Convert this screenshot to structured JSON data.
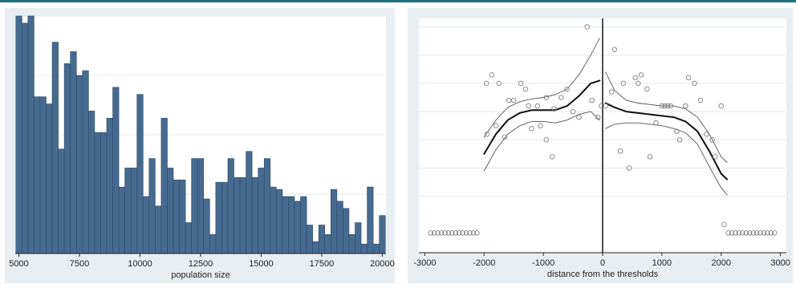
{
  "chart_data": [
    {
      "type": "bar",
      "xlabel": "population size",
      "ylabel": "",
      "xlim": [
        4850,
        20150
      ],
      "ylim": [
        0,
        100
      ],
      "xticks": [
        5000,
        7500,
        10000,
        12500,
        15000,
        17500,
        20000
      ],
      "bin_width": 250,
      "x": [
        5000,
        5250,
        5500,
        5750,
        6000,
        6250,
        6500,
        6750,
        7000,
        7250,
        7500,
        7750,
        8000,
        8250,
        8500,
        8750,
        9000,
        9250,
        9500,
        9750,
        10000,
        10250,
        10500,
        10750,
        11000,
        11250,
        11500,
        11750,
        12000,
        12250,
        12500,
        12750,
        13000,
        13250,
        13500,
        13750,
        14000,
        14250,
        14500,
        14750,
        15000,
        15250,
        15500,
        15750,
        16000,
        16250,
        16500,
        16750,
        17000,
        17250,
        17500,
        17750,
        18000,
        18250,
        18500,
        18750,
        19000,
        19250,
        19500,
        19750,
        20000
      ],
      "values": [
        100,
        97,
        100,
        66,
        66,
        63,
        89,
        44,
        80,
        85,
        75,
        77,
        60,
        51,
        51,
        57,
        70,
        28,
        36,
        36,
        67,
        24,
        40,
        20,
        57,
        36,
        31,
        31,
        13,
        40,
        40,
        23,
        8,
        30,
        30,
        40,
        32,
        32,
        43,
        32,
        36,
        40,
        28,
        27,
        24,
        24,
        22,
        24,
        12,
        5,
        12,
        8,
        27,
        22,
        19,
        8,
        13,
        4,
        28,
        4,
        16
      ]
    },
    {
      "type": "scatter",
      "xlabel": "distance from the thresholds",
      "ylabel": "",
      "xlim": [
        -3100,
        3100
      ],
      "ylim": [
        -1,
        7.3
      ],
      "xticks": [
        -3000,
        -2000,
        -1000,
        0,
        1000,
        2000,
        3000
      ],
      "threshold_line_x": 0,
      "points": [
        [
          -2900,
          -0.3
        ],
        [
          -2840,
          -0.3
        ],
        [
          -2780,
          -0.3
        ],
        [
          -2720,
          -0.3
        ],
        [
          -2660,
          -0.3
        ],
        [
          -2600,
          -0.3
        ],
        [
          -2540,
          -0.3
        ],
        [
          -2480,
          -0.3
        ],
        [
          -2420,
          -0.3
        ],
        [
          -2360,
          -0.3
        ],
        [
          -2300,
          -0.3
        ],
        [
          -2240,
          -0.3
        ],
        [
          -2180,
          -0.3
        ],
        [
          -2120,
          -0.3
        ],
        [
          -1960,
          5.0
        ],
        [
          -1870,
          5.3
        ],
        [
          -1750,
          5.0
        ],
        [
          -1580,
          4.4
        ],
        [
          -1500,
          4.4
        ],
        [
          -1380,
          5.0
        ],
        [
          -1300,
          4.8
        ],
        [
          -1250,
          4.2
        ],
        [
          -1100,
          4.2
        ],
        [
          -1050,
          3.5
        ],
        [
          -950,
          4.5
        ],
        [
          -850,
          2.4
        ],
        [
          -820,
          4.1
        ],
        [
          -700,
          4.5
        ],
        [
          -600,
          4.8
        ],
        [
          -500,
          4.0
        ],
        [
          -400,
          3.8
        ],
        [
          -260,
          7.0
        ],
        [
          -180,
          4.4
        ],
        [
          -80,
          3.8
        ],
        [
          -20,
          4.2
        ],
        [
          -1800,
          3.5
        ],
        [
          -1950,
          3.2
        ],
        [
          -1650,
          3.1
        ],
        [
          -1200,
          3.4
        ],
        [
          -950,
          3.0
        ],
        [
          50,
          4.2
        ],
        [
          150,
          4.7
        ],
        [
          200,
          6.2
        ],
        [
          300,
          2.6
        ],
        [
          350,
          5.0
        ],
        [
          450,
          2.0
        ],
        [
          550,
          5.2
        ],
        [
          600,
          5.0
        ],
        [
          650,
          5.3
        ],
        [
          750,
          4.8
        ],
        [
          800,
          2.4
        ],
        [
          900,
          3.6
        ],
        [
          1000,
          4.2
        ],
        [
          1050,
          4.2
        ],
        [
          1150,
          4.2
        ],
        [
          1250,
          3.3
        ],
        [
          1300,
          3.0
        ],
        [
          1400,
          4.2
        ],
        [
          1450,
          5.2
        ],
        [
          1550,
          5.0
        ],
        [
          1650,
          4.4
        ],
        [
          1750,
          3.2
        ],
        [
          1850,
          3.0
        ],
        [
          1900,
          2.4
        ],
        [
          2000,
          4.2
        ],
        [
          1100,
          4.2
        ],
        [
          2050,
          0.0
        ],
        [
          2120,
          -0.3
        ],
        [
          2180,
          -0.3
        ],
        [
          2240,
          -0.3
        ],
        [
          2300,
          -0.3
        ],
        [
          2360,
          -0.3
        ],
        [
          2420,
          -0.3
        ],
        [
          2480,
          -0.3
        ],
        [
          2540,
          -0.3
        ],
        [
          2600,
          -0.3
        ],
        [
          2660,
          -0.3
        ],
        [
          2720,
          -0.3
        ],
        [
          2780,
          -0.3
        ],
        [
          2840,
          -0.3
        ],
        [
          2900,
          -0.3
        ]
      ],
      "fit_left": [
        [
          -2000,
          2.5
        ],
        [
          -1800,
          3.2
        ],
        [
          -1600,
          3.7
        ],
        [
          -1400,
          3.95
        ],
        [
          -1200,
          4.05
        ],
        [
          -1000,
          4.05
        ],
        [
          -800,
          4.05
        ],
        [
          -600,
          4.2
        ],
        [
          -400,
          4.55
        ],
        [
          -200,
          5.0
        ],
        [
          -50,
          5.1
        ]
      ],
      "ci_left_upper": [
        [
          -2000,
          3.1
        ],
        [
          -1800,
          3.7
        ],
        [
          -1600,
          4.15
        ],
        [
          -1400,
          4.35
        ],
        [
          -1200,
          4.45
        ],
        [
          -1000,
          4.5
        ],
        [
          -800,
          4.6
        ],
        [
          -600,
          4.8
        ],
        [
          -400,
          5.3
        ],
        [
          -200,
          6.0
        ],
        [
          -50,
          6.6
        ]
      ],
      "ci_left_lower": [
        [
          -2000,
          1.9
        ],
        [
          -1800,
          2.65
        ],
        [
          -1600,
          3.2
        ],
        [
          -1400,
          3.5
        ],
        [
          -1200,
          3.65
        ],
        [
          -1000,
          3.65
        ],
        [
          -800,
          3.6
        ],
        [
          -600,
          3.7
        ],
        [
          -400,
          3.9
        ],
        [
          -200,
          4.0
        ],
        [
          -50,
          3.7
        ]
      ],
      "fit_right": [
        [
          50,
          4.3
        ],
        [
          200,
          4.15
        ],
        [
          400,
          4.0
        ],
        [
          600,
          3.95
        ],
        [
          800,
          3.9
        ],
        [
          1000,
          3.85
        ],
        [
          1200,
          3.8
        ],
        [
          1400,
          3.65
        ],
        [
          1600,
          3.3
        ],
        [
          1800,
          2.6
        ],
        [
          2000,
          1.8
        ],
        [
          2100,
          1.6
        ]
      ],
      "ci_right_upper": [
        [
          50,
          5.4
        ],
        [
          200,
          4.75
        ],
        [
          400,
          4.4
        ],
        [
          600,
          4.3
        ],
        [
          800,
          4.25
        ],
        [
          1000,
          4.2
        ],
        [
          1200,
          4.2
        ],
        [
          1400,
          4.1
        ],
        [
          1600,
          3.8
        ],
        [
          1800,
          3.2
        ],
        [
          2000,
          2.4
        ],
        [
          2100,
          2.2
        ]
      ],
      "ci_right_lower": [
        [
          50,
          3.4
        ],
        [
          200,
          3.55
        ],
        [
          400,
          3.6
        ],
        [
          600,
          3.6
        ],
        [
          800,
          3.55
        ],
        [
          1000,
          3.5
        ],
        [
          1200,
          3.4
        ],
        [
          1400,
          3.25
        ],
        [
          1600,
          2.85
        ],
        [
          1800,
          2.05
        ],
        [
          2000,
          1.3
        ],
        [
          2100,
          1.05
        ]
      ]
    }
  ],
  "colors": {
    "panel_background": "#e9eef2",
    "plot_background": "#ffffff",
    "bar_fill": "#476a8f",
    "bar_edge": "#2c4a6a",
    "grid": "#e4e8ec",
    "ink": "#222222",
    "marker": "#808080",
    "ci_line": "#555555",
    "top_rule": "#1f6f7a"
  }
}
